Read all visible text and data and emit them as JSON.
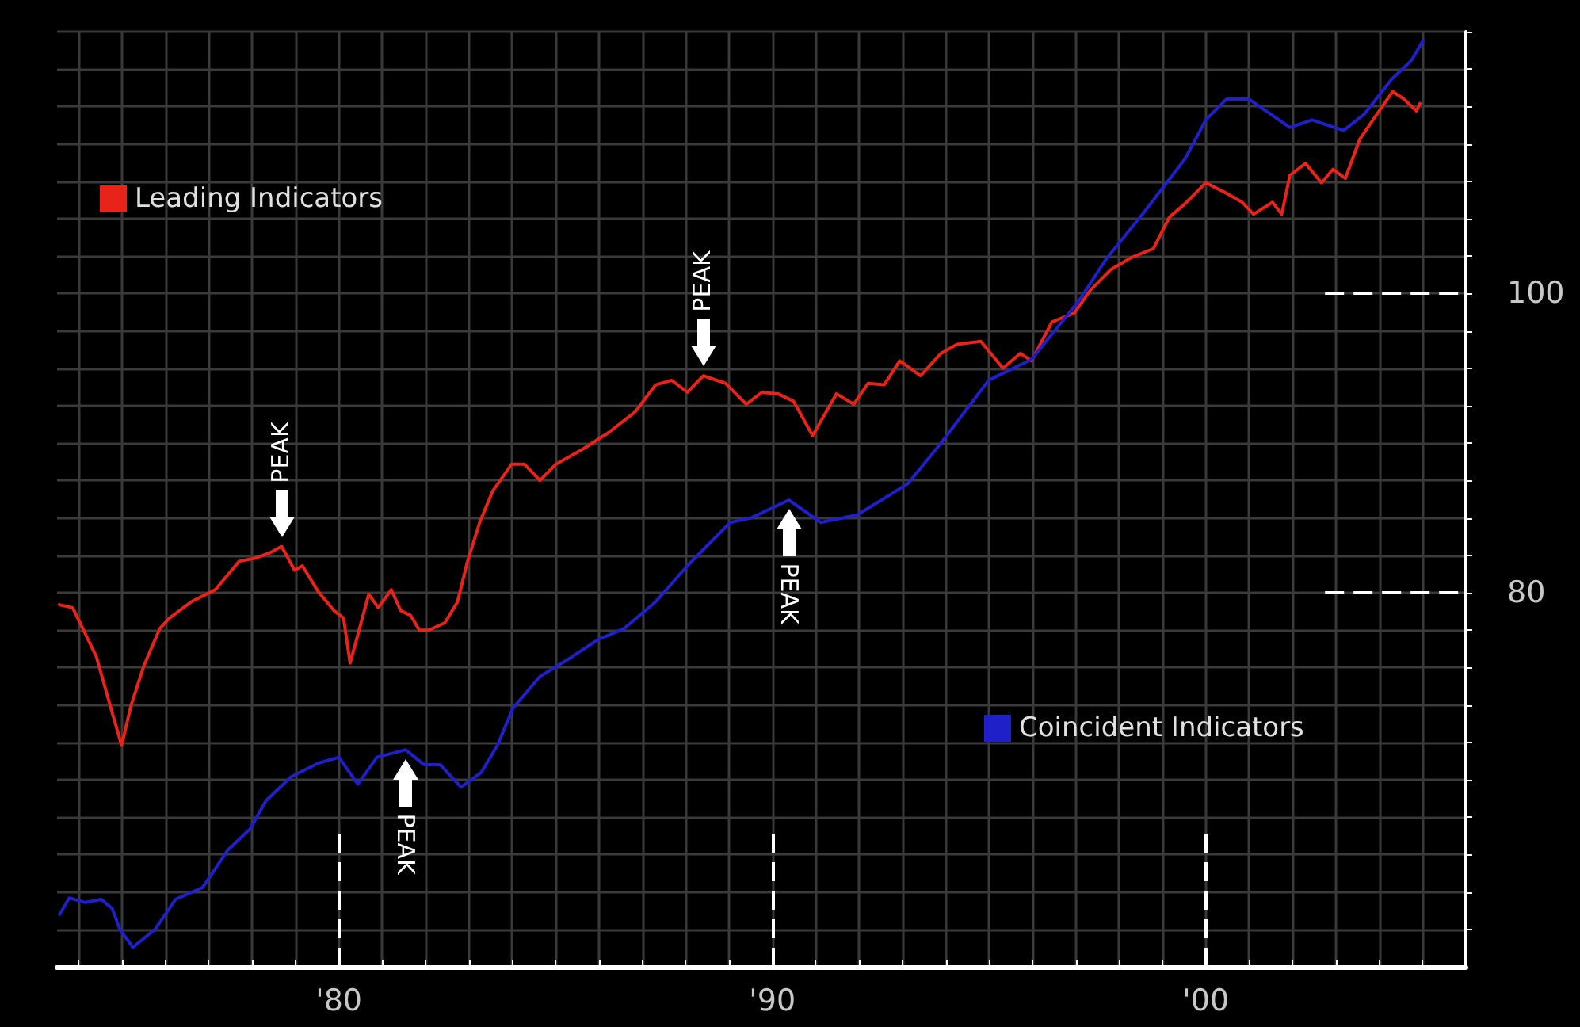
{
  "chart_data": {
    "type": "line",
    "xlim": [
      1973.5,
      2006
    ],
    "ylim": [
      55,
      117.5
    ],
    "grid": true,
    "legend": "top left",
    "marker": "none",
    "xticks": [
      {
        "value": 1974,
        "label": null
      },
      {
        "value": 1975,
        "label": null
      },
      {
        "value": 1976,
        "label": null
      },
      {
        "value": 1977,
        "label": null
      },
      {
        "value": 1978,
        "label": null
      },
      {
        "value": 1979,
        "label": null
      },
      {
        "value": 1980,
        "label": "'80"
      },
      {
        "value": 1981,
        "label": null
      },
      {
        "value": 1982,
        "label": null
      },
      {
        "value": 1983,
        "label": null
      },
      {
        "value": 1984,
        "label": null
      },
      {
        "value": 1985,
        "label": null
      },
      {
        "value": 1986,
        "label": null
      },
      {
        "value": 1987,
        "label": null
      },
      {
        "value": 1988,
        "label": null
      },
      {
        "value": 1989,
        "label": null
      },
      {
        "value": 1990,
        "label": "'90"
      },
      {
        "value": 1991,
        "label": null
      },
      {
        "value": 1992,
        "label": null
      },
      {
        "value": 1993,
        "label": null
      },
      {
        "value": 1994,
        "label": null
      },
      {
        "value": 1995,
        "label": null
      },
      {
        "value": 1996,
        "label": null
      },
      {
        "value": 1997,
        "label": null
      },
      {
        "value": 1998,
        "label": null
      },
      {
        "value": 1999,
        "label": null
      },
      {
        "value": 2000,
        "label": "'00"
      },
      {
        "value": 2001,
        "label": null
      },
      {
        "value": 2002,
        "label": null
      },
      {
        "value": 2003,
        "label": null
      },
      {
        "value": 2004,
        "label": null
      },
      {
        "value": 2005,
        "label": null
      }
    ],
    "yticks": [
      {
        "value": 57.5,
        "label": null
      },
      {
        "value": 60,
        "label": null
      },
      {
        "value": 62.5,
        "label": null
      },
      {
        "value": 65,
        "label": null
      },
      {
        "value": 67.5,
        "label": null
      },
      {
        "value": 70,
        "label": null
      },
      {
        "value": 72.5,
        "label": null
      },
      {
        "value": 75,
        "label": null
      },
      {
        "value": 77.5,
        "label": null
      },
      80,
      {
        "value": 82.5,
        "label": null
      },
      {
        "value": 85,
        "label": null
      },
      {
        "value": 87.5,
        "label": null
      },
      {
        "value": 90,
        "label": null
      },
      {
        "value": 92.5,
        "label": null
      },
      {
        "value": 95,
        "label": null
      },
      {
        "value": 97.5,
        "label": null
      },
      100,
      {
        "value": 102.5,
        "label": null
      },
      {
        "value": 105,
        "label": null
      },
      {
        "value": 107.5,
        "label": null
      },
      {
        "value": 110,
        "label": null
      },
      {
        "value": 112.5,
        "label": null
      },
      {
        "value": 115,
        "label": null
      },
      {
        "value": 117.5,
        "label": null
      }
    ],
    "series": [
      {
        "name": "Leading Indicators",
        "color": "#e8231a",
        "x": [
          1973.55,
          1973.86,
          1974.11,
          1974.41,
          1974.77,
          1974.99,
          1975.21,
          1975.5,
          1975.87,
          1976.09,
          1976.6,
          1977.15,
          1977.7,
          1978.06,
          1978.43,
          1978.68,
          1978.98,
          1979.16,
          1979.52,
          1979.89,
          1980.11,
          1980.26,
          1980.44,
          1980.69,
          1980.91,
          1981.21,
          1981.43,
          1981.65,
          1981.86,
          1982.08,
          1982.45,
          1982.74,
          1982.96,
          1983.25,
          1983.55,
          1983.99,
          1984.28,
          1984.64,
          1985.01,
          1985.63,
          1986.22,
          1986.84,
          1987.31,
          1987.68,
          1988.04,
          1988.41,
          1988.92,
          1989.4,
          1989.76,
          1990.13,
          1990.49,
          1990.93,
          1991.48,
          1991.88,
          1992.21,
          1992.58,
          1992.94,
          1993.42,
          1993.89,
          1994.26,
          1994.81,
          1995.32,
          1995.72,
          1995.98,
          1996.45,
          1996.97,
          1997.33,
          1997.81,
          1998.28,
          1998.79,
          1999.16,
          1999.52,
          2000.0,
          2000.48,
          2000.84,
          2001.1,
          2001.54,
          2001.75,
          2001.94,
          2002.3,
          2002.67,
          2002.93,
          2003.22,
          2003.55,
          2003.95,
          2004.31,
          2004.57,
          2004.86,
          2004.94
        ],
        "values": [
          79.2,
          79.0,
          77.5,
          75.7,
          72.0,
          69.8,
          72.5,
          75.1,
          77.6,
          78.3,
          79.4,
          80.2,
          82.1,
          82.3,
          82.7,
          83.1,
          81.5,
          81.8,
          80.1,
          78.8,
          78.3,
          75.3,
          77.2,
          79.9,
          79.0,
          80.2,
          78.8,
          78.5,
          77.5,
          77.5,
          78.0,
          79.4,
          82.0,
          84.7,
          86.8,
          88.6,
          88.6,
          87.5,
          88.6,
          89.6,
          90.7,
          92.1,
          93.9,
          94.2,
          93.4,
          94.5,
          94.0,
          92.6,
          93.4,
          93.3,
          92.8,
          90.5,
          93.3,
          92.6,
          94.0,
          93.9,
          95.5,
          94.5,
          96.0,
          96.6,
          96.8,
          95.0,
          96.0,
          95.5,
          98.1,
          98.7,
          100.2,
          101.6,
          102.4,
          103.0,
          105.1,
          106.0,
          107.4,
          106.7,
          106.1,
          105.3,
          106.1,
          105.3,
          107.9,
          108.7,
          107.4,
          108.3,
          107.7,
          110.3,
          112.0,
          113.5,
          113.0,
          112.2,
          112.7
        ]
      },
      {
        "name": "Coincident Indicators",
        "color": "#2020c8",
        "x": [
          1973.56,
          1973.78,
          1974.15,
          1974.52,
          1974.77,
          1974.95,
          1975.25,
          1975.76,
          1976.23,
          1976.86,
          1977.44,
          1977.95,
          1978.32,
          1978.9,
          1979.52,
          1980.0,
          1980.44,
          1980.88,
          1981.54,
          1981.97,
          1982.34,
          1982.82,
          1983.29,
          1983.66,
          1984.02,
          1984.64,
          1985.37,
          1986.0,
          1986.58,
          1987.31,
          1988.04,
          1989.03,
          1989.51,
          1990.38,
          1991.12,
          1991.96,
          1992.69,
          1993.13,
          1993.89,
          1994.99,
          1995.98,
          1997.07,
          1997.7,
          1998.54,
          1999.52,
          2000.0,
          2000.48,
          2000.99,
          2001.94,
          2002.45,
          2003.18,
          2003.66,
          2004.28,
          2004.75,
          2005.01
        ],
        "values": [
          58.5,
          59.6,
          59.3,
          59.5,
          58.9,
          57.5,
          56.3,
          57.5,
          59.5,
          60.3,
          62.8,
          64.2,
          66.1,
          67.7,
          68.6,
          69.0,
          67.2,
          69.0,
          69.5,
          68.5,
          68.5,
          67.0,
          68.0,
          69.8,
          72.3,
          74.4,
          75.7,
          76.9,
          77.6,
          79.4,
          81.8,
          84.7,
          85.0,
          86.2,
          84.7,
          85.2,
          86.5,
          87.3,
          90.0,
          94.2,
          95.6,
          99.5,
          102.3,
          105.3,
          109.0,
          111.6,
          113.0,
          113.0,
          111.1,
          111.6,
          110.9,
          112.0,
          114.3,
          115.6,
          116.9
        ]
      }
    ],
    "ref_lines": [
      {
        "axis": "x",
        "value": 1980,
        "color": "#ffffff",
        "line_style": "dashed"
      },
      {
        "axis": "x",
        "value": 1990,
        "color": "#ffffff",
        "line_style": "dashed"
      },
      {
        "axis": "x",
        "value": 2000,
        "color": "#ffffff",
        "line_style": "dashed"
      },
      {
        "axis": "y",
        "value": 80,
        "color": "#ffffff",
        "line_style": "dashed"
      },
      {
        "axis": "y",
        "value": 100,
        "color": "#ffffff",
        "line_style": "dashed"
      }
    ],
    "annotations": [
      {
        "text": "PEAK",
        "x": 1978.68,
        "y": 83.1
      },
      {
        "text": "PEAK",
        "x": 1988.41,
        "y": 94.5
      },
      {
        "text": "PEAK",
        "x": 1981.54,
        "y": 69.5
      },
      {
        "text": "PEAK",
        "x": 1990.38,
        "y": 86.2
      }
    ]
  }
}
